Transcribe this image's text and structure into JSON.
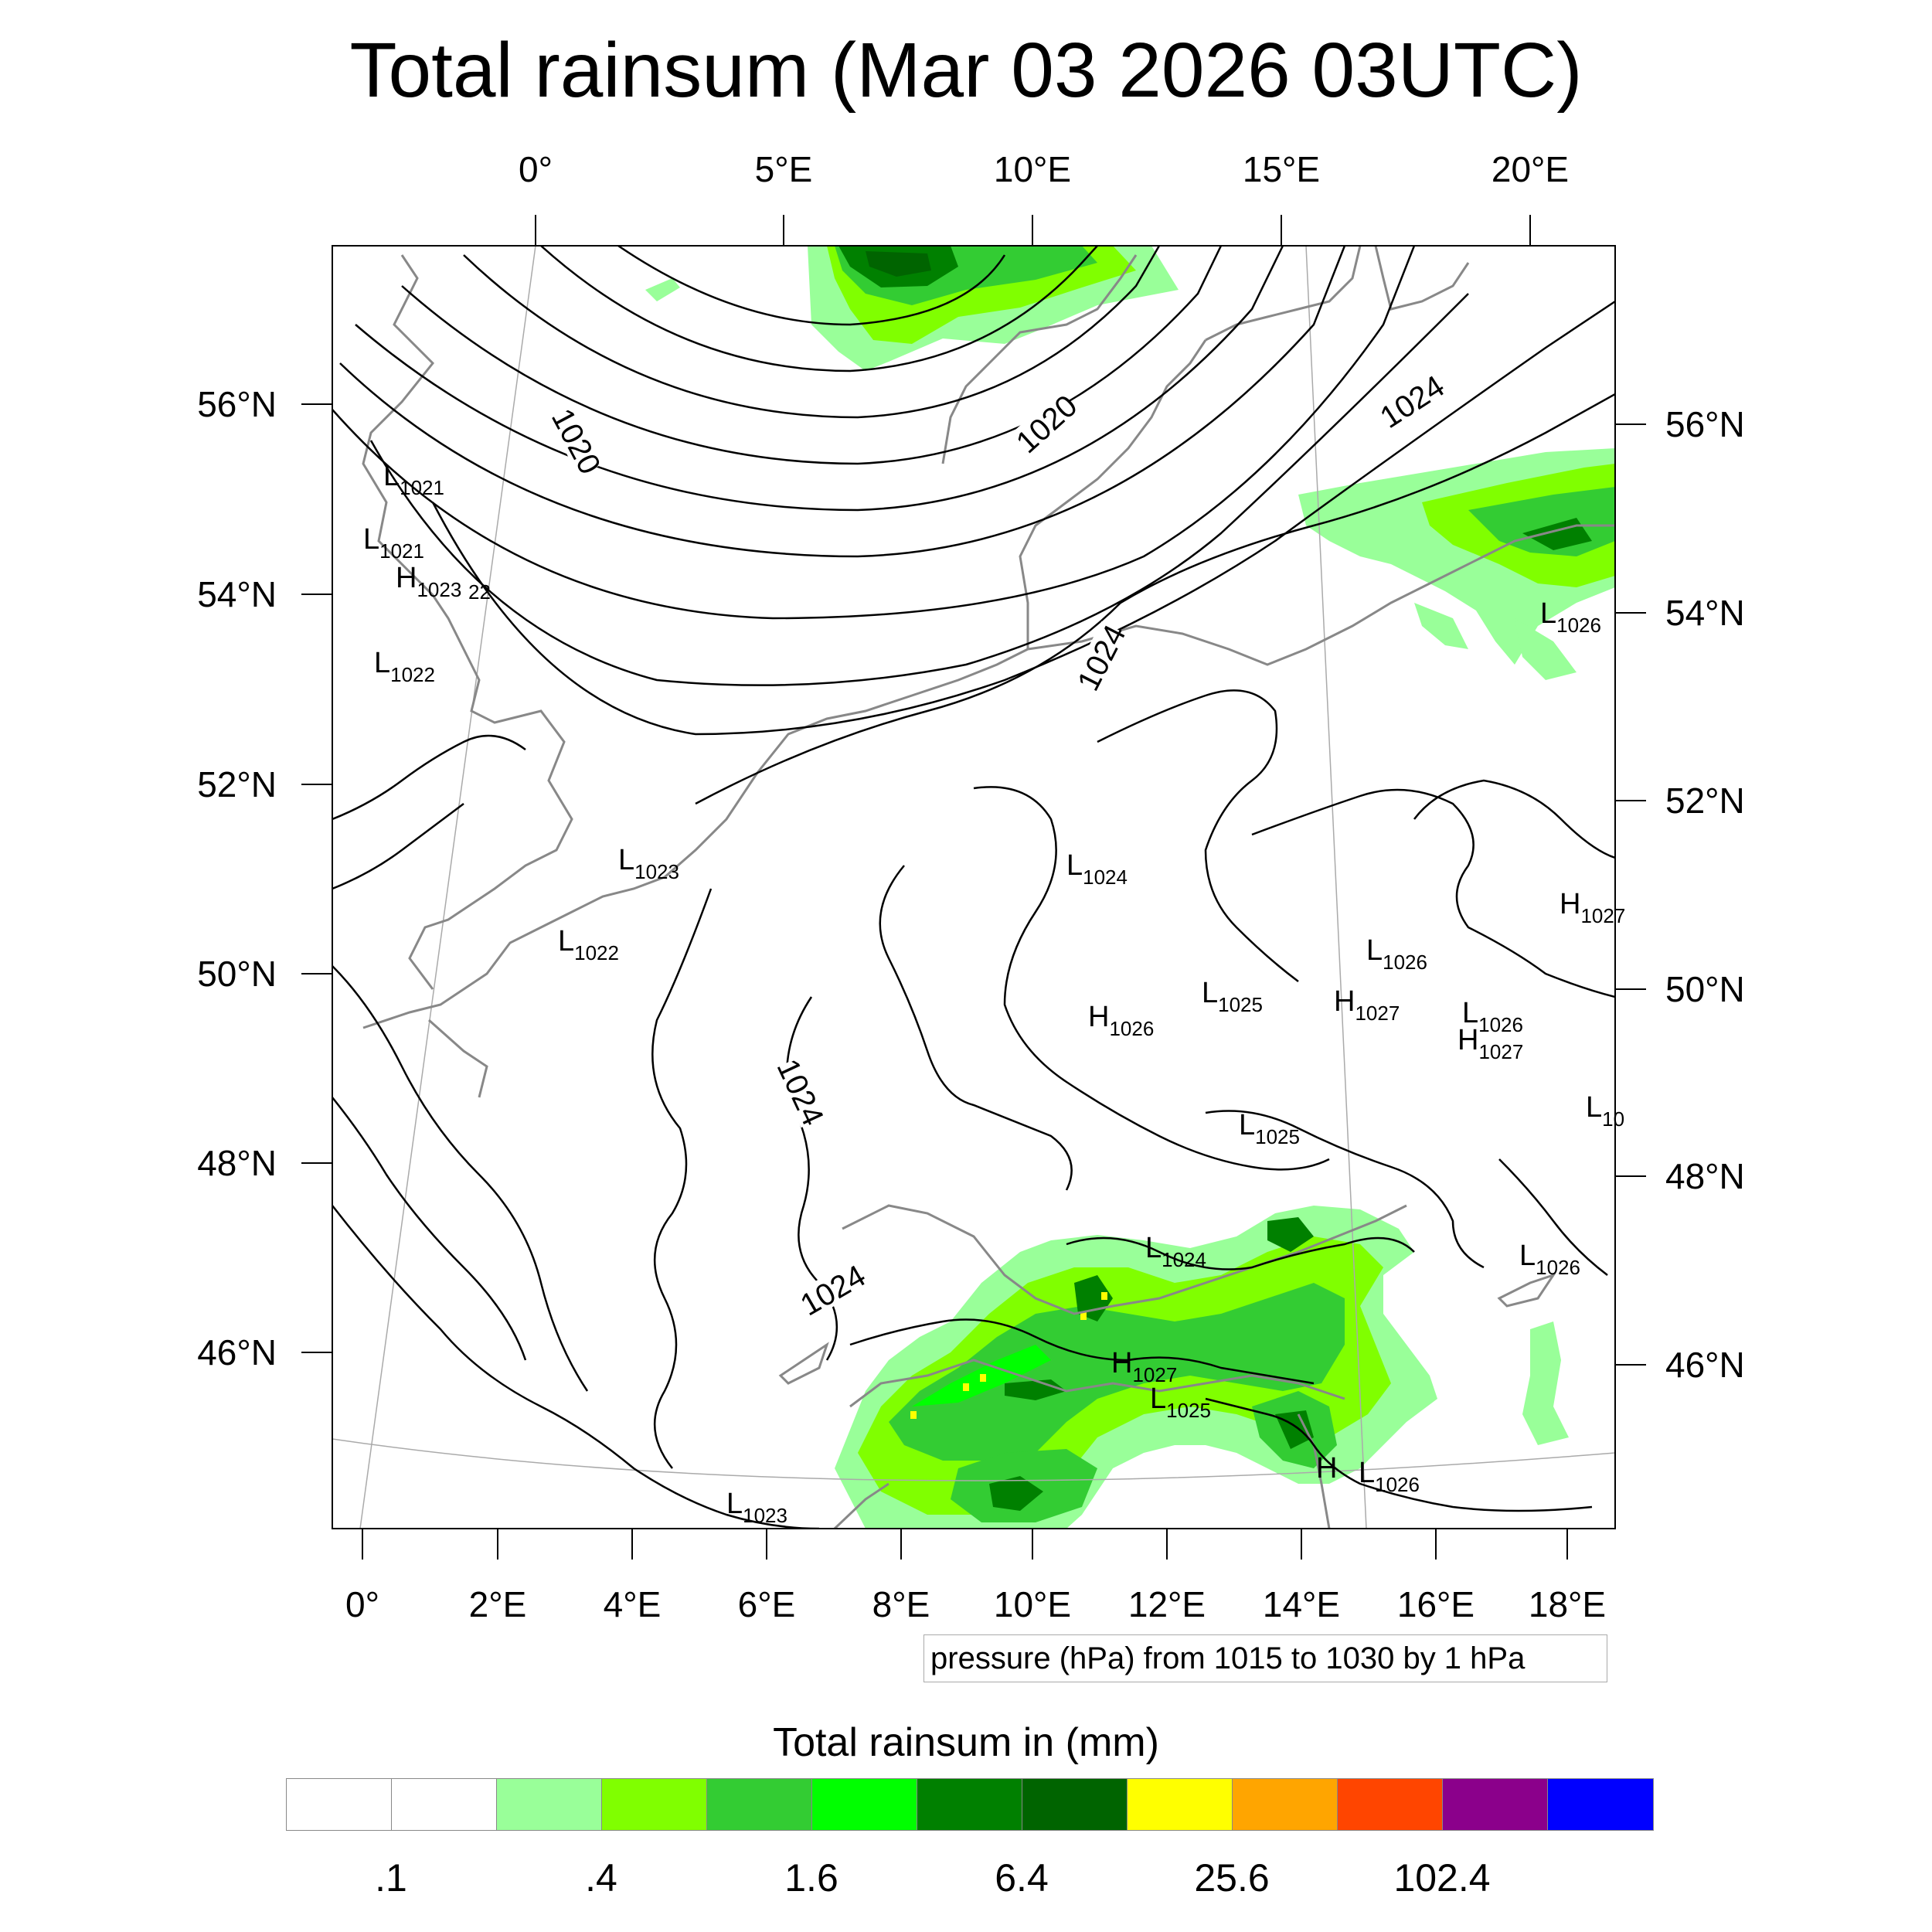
{
  "title": "Total rainsum (Mar 03 2026 03UTC)",
  "top_lon_labels": [
    "0°",
    "5°E",
    "10°E",
    "15°E",
    "20°E"
  ],
  "bottom_lon_labels": [
    "0°",
    "2°E",
    "4°E",
    "6°E",
    "8°E",
    "10°E",
    "12°E",
    "14°E",
    "16°E",
    "18°E"
  ],
  "left_lat_labels": [
    "56°N",
    "54°N",
    "52°N",
    "50°N",
    "48°N",
    "46°N"
  ],
  "right_lat_labels": [
    "56°N",
    "54°N",
    "52°N",
    "50°N",
    "48°N",
    "46°N"
  ],
  "contour_labels": [
    "1020",
    "1020",
    "1024",
    "1024",
    "1024",
    "1024"
  ],
  "pressure_centers": [
    {
      "type": "L",
      "value": "1021"
    },
    {
      "type": "L",
      "value": "1021"
    },
    {
      "type": "H",
      "value": "1023"
    },
    {
      "type": "",
      "value": "22"
    },
    {
      "type": "L",
      "value": "1022"
    },
    {
      "type": "L",
      "value": "1023"
    },
    {
      "type": "L",
      "value": "1022"
    },
    {
      "type": "L",
      "value": "1024"
    },
    {
      "type": "H",
      "value": "1026"
    },
    {
      "type": "L",
      "value": "1025"
    },
    {
      "type": "L",
      "value": "1026"
    },
    {
      "type": "H",
      "value": "1027"
    },
    {
      "type": "L",
      "value": "1026"
    },
    {
      "type": "H",
      "value": "1027"
    },
    {
      "type": "H",
      "value": "1027"
    },
    {
      "type": "L",
      "value": "10"
    },
    {
      "type": "L",
      "value": "1025"
    },
    {
      "type": "L",
      "value": "1026"
    },
    {
      "type": "L",
      "value": "1024"
    },
    {
      "type": "H",
      "value": "1027"
    },
    {
      "type": "L",
      "value": "1025"
    },
    {
      "type": "H",
      "value": ""
    },
    {
      "type": "L",
      "value": "1026"
    },
    {
      "type": "L",
      "value": "1026"
    },
    {
      "type": "L",
      "value": "1023"
    }
  ],
  "contour_info": "pressure (hPa) from 1015 to 1030 by 1 hPa",
  "colorbar": {
    "title": "Total rainsum in (mm)",
    "colors": [
      "#ffffff",
      "#ffffff",
      "#99ff99",
      "#80ff00",
      "#33cc33",
      "#00ff00",
      "#008000",
      "#006400",
      "#ffff00",
      "#ffa500",
      "#ff4500",
      "#8b008b",
      "#0000ff"
    ],
    "tick_labels": [
      ".1",
      ".4",
      "1.6",
      "6.4",
      "25.6",
      "102.4"
    ]
  },
  "colors": {
    "coastline": "#888888",
    "isobar": "#000000",
    "graticule": "#aaaaaa"
  }
}
